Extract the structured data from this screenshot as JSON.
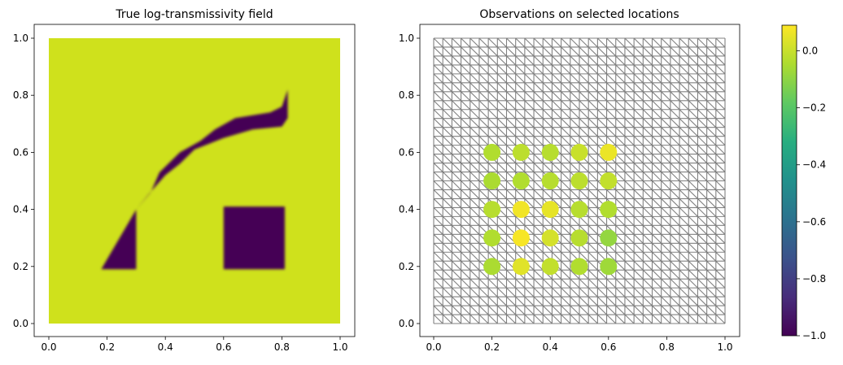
{
  "chart_data": [
    {
      "type": "heatmap",
      "title": "True log-transmissivity field",
      "xlabel": "",
      "ylabel": "",
      "xlim": [
        0.0,
        1.0
      ],
      "ylim": [
        0.0,
        1.0
      ],
      "xticks": [
        "0.0",
        "0.2",
        "0.4",
        "0.6",
        "0.8",
        "1.0"
      ],
      "yticks": [
        "0.0",
        "0.2",
        "0.4",
        "0.6",
        "0.8",
        "1.0"
      ],
      "background_value": 0.0,
      "low_value": -1.0,
      "low_regions": [
        {
          "name": "curved-channel",
          "polygon": [
            [
              0.18,
              0.19
            ],
            [
              0.3,
              0.19
            ],
            [
              0.3,
              0.4
            ],
            [
              0.35,
              0.46
            ],
            [
              0.38,
              0.53
            ],
            [
              0.45,
              0.6
            ],
            [
              0.52,
              0.64
            ],
            [
              0.57,
              0.68
            ],
            [
              0.64,
              0.72
            ],
            [
              0.7,
              0.73
            ],
            [
              0.76,
              0.74
            ],
            [
              0.8,
              0.76
            ],
            [
              0.82,
              0.82
            ],
            [
              0.82,
              0.72
            ],
            [
              0.8,
              0.69
            ],
            [
              0.7,
              0.68
            ],
            [
              0.6,
              0.65
            ],
            [
              0.5,
              0.61
            ],
            [
              0.45,
              0.56
            ],
            [
              0.4,
              0.52
            ],
            [
              0.34,
              0.45
            ],
            [
              0.3,
              0.4
            ]
          ]
        },
        {
          "name": "square-block",
          "polygon": [
            [
              0.6,
              0.19
            ],
            [
              0.81,
              0.19
            ],
            [
              0.81,
              0.41
            ],
            [
              0.6,
              0.41
            ]
          ]
        }
      ]
    },
    {
      "type": "scatter",
      "title": "Observations on selected locations",
      "xlabel": "",
      "ylabel": "",
      "xlim": [
        0.0,
        1.0
      ],
      "ylim": [
        0.0,
        1.0
      ],
      "xticks": [
        "0.0",
        "0.2",
        "0.4",
        "0.6",
        "0.8",
        "1.0"
      ],
      "yticks": [
        "0.0",
        "0.2",
        "0.4",
        "0.6",
        "0.8",
        "1.0"
      ],
      "mesh": {
        "divisions": 32,
        "color": "#808080"
      },
      "points": [
        {
          "x": 0.2,
          "y": 0.6,
          "v": -0.04
        },
        {
          "x": 0.3,
          "y": 0.6,
          "v": -0.02
        },
        {
          "x": 0.4,
          "y": 0.6,
          "v": -0.03
        },
        {
          "x": 0.5,
          "y": 0.6,
          "v": 0.0
        },
        {
          "x": 0.6,
          "y": 0.6,
          "v": 0.06
        },
        {
          "x": 0.2,
          "y": 0.5,
          "v": -0.05
        },
        {
          "x": 0.3,
          "y": 0.5,
          "v": -0.04
        },
        {
          "x": 0.4,
          "y": 0.5,
          "v": -0.03
        },
        {
          "x": 0.5,
          "y": 0.5,
          "v": -0.02
        },
        {
          "x": 0.6,
          "y": 0.5,
          "v": -0.01
        },
        {
          "x": 0.2,
          "y": 0.4,
          "v": -0.03
        },
        {
          "x": 0.3,
          "y": 0.4,
          "v": 0.07
        },
        {
          "x": 0.4,
          "y": 0.4,
          "v": 0.05
        },
        {
          "x": 0.5,
          "y": 0.4,
          "v": -0.03
        },
        {
          "x": 0.6,
          "y": 0.4,
          "v": -0.04
        },
        {
          "x": 0.2,
          "y": 0.3,
          "v": -0.04
        },
        {
          "x": 0.3,
          "y": 0.3,
          "v": 0.08
        },
        {
          "x": 0.4,
          "y": 0.3,
          "v": 0.02
        },
        {
          "x": 0.5,
          "y": 0.3,
          "v": -0.03
        },
        {
          "x": 0.6,
          "y": 0.3,
          "v": -0.09
        },
        {
          "x": 0.2,
          "y": 0.2,
          "v": -0.05
        },
        {
          "x": 0.3,
          "y": 0.2,
          "v": 0.04
        },
        {
          "x": 0.4,
          "y": 0.2,
          "v": -0.01
        },
        {
          "x": 0.5,
          "y": 0.2,
          "v": -0.04
        },
        {
          "x": 0.6,
          "y": 0.2,
          "v": -0.07
        }
      ]
    }
  ],
  "colorbar": {
    "colormap": "viridis",
    "vmin": -1.0,
    "vmax": 0.09,
    "ticks": [
      {
        "value": 0.0,
        "label": "0.0"
      },
      {
        "value": -0.2,
        "label": "−0.2"
      },
      {
        "value": -0.4,
        "label": "−0.4"
      },
      {
        "value": -0.6,
        "label": "−0.6"
      },
      {
        "value": -0.8,
        "label": "−0.8"
      },
      {
        "value": -1.0,
        "label": "−1.0"
      }
    ]
  }
}
